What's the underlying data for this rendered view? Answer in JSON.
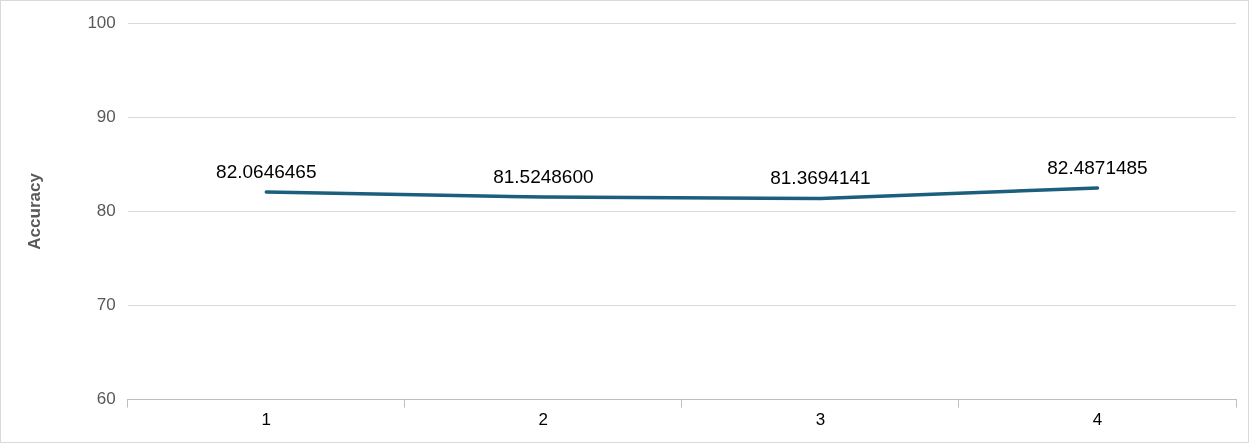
{
  "chart_data": {
    "type": "line",
    "ylabel": "Accuracy",
    "categories": [
      "1",
      "2",
      "3",
      "4"
    ],
    "series": [
      {
        "color": "#1b5e7e",
        "values": [
          82.0646465,
          81.52486,
          81.3694141,
          82.4871485
        ],
        "value_labels": [
          "82.0646465",
          "81.5248600",
          "81.3694141",
          "82.4871485"
        ]
      }
    ],
    "ylim": [
      60,
      100
    ],
    "yticks": [
      60,
      70,
      80,
      90,
      100
    ],
    "grid": "y",
    "legend": false,
    "marker": "none"
  }
}
